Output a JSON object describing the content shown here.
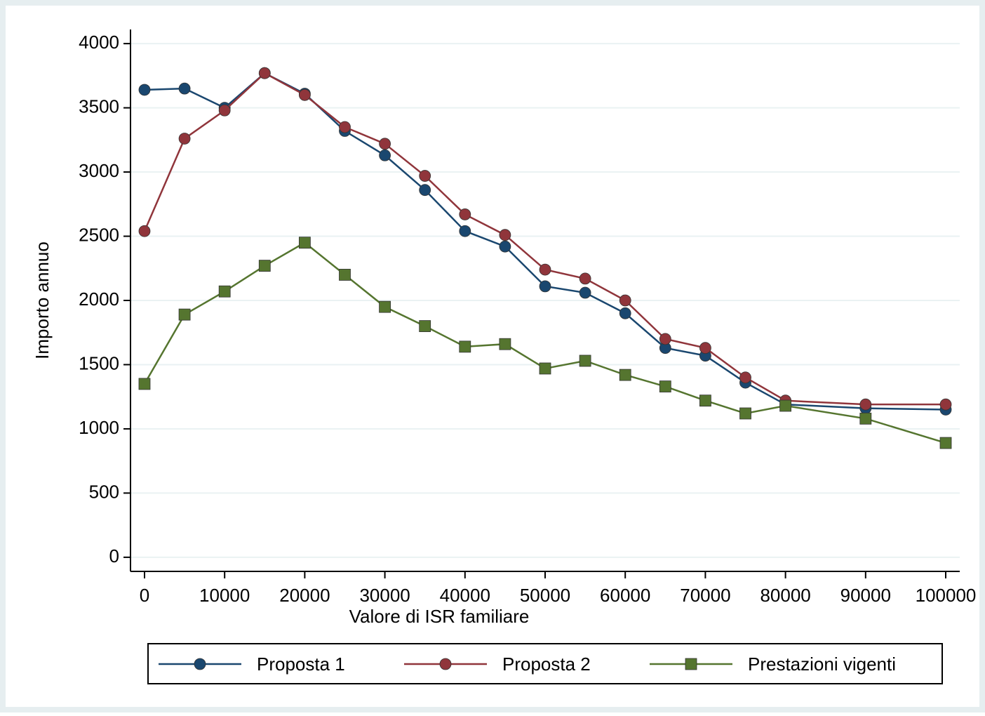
{
  "chart_data": {
    "type": "line",
    "x_label": "Valore di ISR familiare",
    "y_label": "Importo annuo",
    "x": [
      0,
      5000,
      10000,
      15000,
      20000,
      25000,
      30000,
      35000,
      40000,
      45000,
      50000,
      55000,
      60000,
      65000,
      70000,
      75000,
      80000,
      90000,
      100000
    ],
    "series": [
      {
        "name": "Proposta 1",
        "color": "#1a476f",
        "marker": "circle",
        "values": [
          3640,
          3650,
          3500,
          3770,
          3610,
          3320,
          3130,
          2860,
          2540,
          2420,
          2110,
          2060,
          1900,
          1630,
          1570,
          1360,
          1190,
          1160,
          1150
        ]
      },
      {
        "name": "Proposta 2",
        "color": "#90353b",
        "marker": "circle",
        "values": [
          2540,
          3260,
          3480,
          3770,
          3600,
          3350,
          3220,
          2970,
          2670,
          2510,
          2240,
          2170,
          2000,
          1700,
          1630,
          1400,
          1220,
          1190,
          1190
        ]
      },
      {
        "name": "Prestazioni vigenti",
        "color": "#55752f",
        "marker": "square",
        "values": [
          1350,
          1890,
          2070,
          2270,
          2450,
          2200,
          1950,
          1800,
          1640,
          1660,
          1470,
          1530,
          1420,
          1330,
          1220,
          1120,
          1180,
          1080,
          890
        ]
      }
    ],
    "xlim": [
      -1750,
      101750
    ],
    "ylim": [
      -110,
      4110
    ],
    "xticks": [
      0,
      10000,
      20000,
      30000,
      40000,
      50000,
      60000,
      70000,
      80000,
      90000,
      100000
    ],
    "yticks": [
      0,
      500,
      1000,
      1500,
      2000,
      2500,
      3000,
      3500,
      4000
    ],
    "grid": true,
    "legend": "bottom"
  }
}
